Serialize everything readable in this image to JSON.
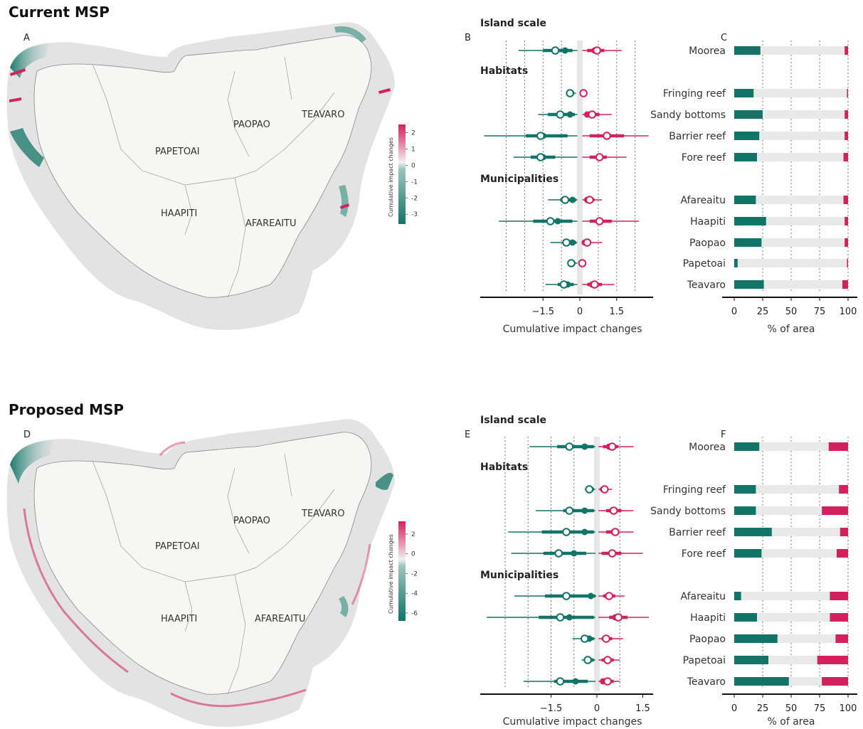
{
  "colors": {
    "negative": "#117466",
    "positive": "#d3215f",
    "bar_bg": "#e9e9e9",
    "land": "#f4f4f2",
    "reef": "#e4e4e4"
  },
  "panels": [
    {
      "section_title": "Current MSP",
      "map": {
        "letter": "A",
        "municipalities": [
          "PAPETOAI",
          "PAOPAO",
          "TEAVARO",
          "HAAPITI",
          "AFAREAITU"
        ],
        "colorbar": {
          "title": "Cumulative impact changes",
          "ticks": [
            2,
            1,
            0,
            -1,
            -2,
            -3
          ],
          "min": -3.6,
          "max": 2.5
        }
      },
      "forest_letter": "B",
      "bars_letter": "C",
      "forest_axis_title": "Cumulative impact changes",
      "bars_axis_title": "% of area",
      "groups": [
        "Island scale",
        "Habitats",
        "Municipalities"
      ]
    },
    {
      "section_title": "Proposed MSP",
      "map": {
        "letter": "D",
        "municipalities": [
          "PAPETOAI",
          "PAOPAO",
          "TEAVARO",
          "HAAPITI",
          "AFAREAITU"
        ],
        "colorbar": {
          "title": "Cumulative impact changes",
          "ticks": [
            2,
            0,
            -2,
            -4,
            -6
          ],
          "min": -6.8,
          "max": 3.3
        }
      },
      "forest_letter": "E",
      "bars_letter": "F",
      "forest_axis_title": "Cumulative impact changes",
      "bars_axis_title": "% of area",
      "groups": [
        "Island scale",
        "Habitats",
        "Municipalities"
      ]
    }
  ],
  "chart_data": [
    {
      "type": "forest",
      "panel": "B",
      "xlabel": "Cumulative impact changes",
      "x_ticks": [
        -1.5,
        0,
        1.5
      ],
      "xlim": [
        -3.8,
        3.1
      ],
      "rows": [
        {
          "label": "Moorea",
          "group": "Island scale",
          "neg": {
            "low": -2.5,
            "q1": -1.5,
            "median": -1.0,
            "mean": -0.6,
            "q3": -0.3,
            "high": -0.1
          },
          "pos": {
            "low": 0.1,
            "q1": 0.3,
            "median": 0.7,
            "mean": 0.6,
            "q3": 1.0,
            "high": 1.7
          }
        },
        {
          "label": "Fringing reef",
          "group": "Habitats",
          "neg": {
            "low": -0.5,
            "q1": -0.45,
            "median": -0.4,
            "mean": -0.35,
            "q3": -0.25,
            "high": -0.15
          },
          "pos": {
            "low": 0.1,
            "q1": 0.1,
            "median": 0.15,
            "mean": 0.15,
            "q3": 0.15,
            "high": 0.15
          }
        },
        {
          "label": "Sandy bottoms",
          "group": "Habitats",
          "neg": {
            "low": -1.7,
            "q1": -1.3,
            "median": -0.8,
            "mean": -0.4,
            "q3": -0.2,
            "high": -0.1
          },
          "pos": {
            "low": 0.1,
            "q1": 0.2,
            "median": 0.5,
            "mean": 0.3,
            "q3": 0.8,
            "high": 1.3
          }
        },
        {
          "label": "Barrier reef",
          "group": "Habitats",
          "neg": {
            "low": -3.9,
            "q1": -2.2,
            "median": -1.6,
            "mean": -1.5,
            "q3": -0.5,
            "high": -0.1
          },
          "pos": {
            "low": 0.1,
            "q1": 0.4,
            "median": 1.1,
            "mean": 1.1,
            "q3": 1.8,
            "high": 2.8
          }
        },
        {
          "label": "Fore reef",
          "group": "Habitats",
          "neg": {
            "low": -2.7,
            "q1": -2.0,
            "median": -1.6,
            "mean": -1.5,
            "q3": -1.0,
            "high": -0.1
          },
          "pos": {
            "low": 0.1,
            "q1": 0.4,
            "median": 0.8,
            "mean": 0.8,
            "q3": 1.1,
            "high": 1.9
          }
        },
        {
          "label": "Afareaitu",
          "group": "Municipalities",
          "neg": {
            "low": -1.3,
            "q1": -0.8,
            "median": -0.6,
            "mean": -0.3,
            "q3": -0.15,
            "high": -0.1
          },
          "pos": {
            "low": 0.1,
            "q1": 0.2,
            "median": 0.4,
            "mean": 0.3,
            "q3": 0.6,
            "high": 0.9
          }
        },
        {
          "label": "Haapiti",
          "group": "Municipalities",
          "neg": {
            "low": -3.3,
            "q1": -1.9,
            "median": -1.2,
            "mean": -0.9,
            "q3": -0.3,
            "high": -0.1
          },
          "pos": {
            "low": 0.1,
            "q1": 0.4,
            "median": 0.8,
            "mean": 0.8,
            "q3": 1.3,
            "high": 2.4
          }
        },
        {
          "label": "Paopao",
          "group": "Municipalities",
          "neg": {
            "low": -1.2,
            "q1": -0.7,
            "median": -0.55,
            "mean": -0.3,
            "q3": -0.15,
            "high": -0.1
          },
          "pos": {
            "low": 0.1,
            "q1": 0.15,
            "median": 0.3,
            "mean": 0.2,
            "q3": 0.4,
            "high": 0.9
          }
        },
        {
          "label": "Papetoai",
          "group": "Municipalities",
          "neg": {
            "low": -0.45,
            "q1": -0.4,
            "median": -0.35,
            "mean": -0.3,
            "q3": -0.2,
            "high": -0.1
          },
          "pos": {
            "low": 0.1,
            "q1": 0.1,
            "median": 0.1,
            "mean": 0.1,
            "q3": 0.1,
            "high": 0.15
          }
        },
        {
          "label": "Teavaro",
          "group": "Municipalities",
          "neg": {
            "low": -1.4,
            "q1": -0.9,
            "median": -0.65,
            "mean": -0.5,
            "q3": -0.25,
            "high": -0.1
          },
          "pos": {
            "low": 0.1,
            "q1": 0.3,
            "median": 0.6,
            "mean": 0.5,
            "q3": 0.9,
            "high": 1.4
          }
        }
      ]
    },
    {
      "type": "stacked_bar",
      "panel": "C",
      "xlabel": "% of area",
      "x_ticks": [
        0,
        25,
        50,
        75,
        100
      ],
      "xlim": [
        0,
        100
      ],
      "rows": [
        {
          "label": "Moorea",
          "negative": 23,
          "neutral": 74,
          "positive": 3
        },
        {
          "label": "Fringing reef",
          "negative": 17,
          "neutral": 82,
          "positive": 1
        },
        {
          "label": "Sandy bottoms",
          "negative": 25,
          "neutral": 72,
          "positive": 3
        },
        {
          "label": "Barrier reef",
          "negative": 22,
          "neutral": 75,
          "positive": 3
        },
        {
          "label": "Fore reef",
          "negative": 20,
          "neutral": 76,
          "positive": 4
        },
        {
          "label": "Afareaitu",
          "negative": 19,
          "neutral": 77,
          "positive": 4
        },
        {
          "label": "Haapiti",
          "negative": 28,
          "neutral": 69,
          "positive": 3
        },
        {
          "label": "Paopao",
          "negative": 24,
          "neutral": 73,
          "positive": 3
        },
        {
          "label": "Papetoai",
          "negative": 3,
          "neutral": 96,
          "positive": 1
        },
        {
          "label": "Teavaro",
          "negative": 26,
          "neutral": 69,
          "positive": 5
        }
      ]
    },
    {
      "type": "forest",
      "panel": "E",
      "xlabel": "Cumulative impact changes",
      "x_ticks": [
        -1.5,
        0,
        1.5
      ],
      "xlim": [
        -3.8,
        1.9
      ],
      "rows": [
        {
          "label": "Moorea",
          "group": "Island scale",
          "neg": {
            "low": -2.2,
            "q1": -1.3,
            "median": -0.9,
            "mean": -0.4,
            "q3": -0.1,
            "high": -0.05
          },
          "pos": {
            "low": 0.05,
            "q1": 0.2,
            "median": 0.5,
            "mean": 0.4,
            "q3": 0.7,
            "high": 1.2
          }
        },
        {
          "label": "Fringing reef",
          "group": "Habitats",
          "neg": {
            "low": -0.4,
            "q1": -0.35,
            "median": -0.25,
            "mean": -0.2,
            "q3": -0.1,
            "high": -0.05
          },
          "pos": {
            "low": 0.05,
            "q1": 0.1,
            "median": 0.25,
            "mean": 0.2,
            "q3": 0.35,
            "high": 0.5
          }
        },
        {
          "label": "Sandy bottoms",
          "group": "Habitats",
          "neg": {
            "low": -2.0,
            "q1": -1.1,
            "median": -0.9,
            "mean": -0.4,
            "q3": -0.1,
            "high": -0.05
          },
          "pos": {
            "low": 0.05,
            "q1": 0.3,
            "median": 0.55,
            "mean": 0.5,
            "q3": 0.8,
            "high": 1.2
          }
        },
        {
          "label": "Barrier reef",
          "group": "Habitats",
          "neg": {
            "low": -2.9,
            "q1": -1.8,
            "median": -1.0,
            "mean": -0.4,
            "q3": -0.1,
            "high": -0.05
          },
          "pos": {
            "low": 0.05,
            "q1": 0.3,
            "median": 0.6,
            "mean": 0.55,
            "q3": 0.7,
            "high": 1.2
          }
        },
        {
          "label": "Fore reef",
          "group": "Habitats",
          "neg": {
            "low": -2.8,
            "q1": -1.75,
            "median": -1.25,
            "mean": -0.75,
            "q3": -0.35,
            "high": -0.05
          },
          "pos": {
            "low": 0.05,
            "q1": 0.15,
            "median": 0.5,
            "mean": 0.5,
            "q3": 0.8,
            "high": 1.5
          }
        },
        {
          "label": "Afareaitu",
          "group": "Municipalities",
          "neg": {
            "low": -2.7,
            "q1": -1.7,
            "median": -1.0,
            "mean": -0.2,
            "q3": -0.05,
            "high": -0.02
          },
          "pos": {
            "low": 0.05,
            "q1": 0.2,
            "median": 0.4,
            "mean": 0.35,
            "q3": 0.6,
            "high": 0.9
          }
        },
        {
          "label": "Haapiti",
          "group": "Municipalities",
          "neg": {
            "low": -3.6,
            "q1": -1.9,
            "median": -1.2,
            "mean": -0.9,
            "q3": -0.1,
            "high": -0.05
          },
          "pos": {
            "low": 0.05,
            "q1": 0.4,
            "median": 0.7,
            "mean": 0.6,
            "q3": 1.0,
            "high": 1.7
          }
        },
        {
          "label": "Paopao",
          "group": "Municipalities",
          "neg": {
            "low": -0.8,
            "q1": -0.5,
            "median": -0.4,
            "mean": -0.25,
            "q3": -0.1,
            "high": -0.05
          },
          "pos": {
            "low": 0.05,
            "q1": 0.15,
            "median": 0.3,
            "mean": 0.3,
            "q3": 0.5,
            "high": 0.85
          }
        },
        {
          "label": "Papetoai",
          "group": "Municipalities",
          "neg": {
            "low": -0.5,
            "q1": -0.4,
            "median": -0.3,
            "mean": -0.25,
            "q3": -0.1,
            "high": -0.05
          },
          "pos": {
            "low": 0.05,
            "q1": 0.15,
            "median": 0.35,
            "mean": 0.35,
            "q3": 0.55,
            "high": 0.75
          }
        },
        {
          "label": "Teavaro",
          "group": "Municipalities",
          "neg": {
            "low": -2.4,
            "q1": -1.4,
            "median": -1.2,
            "mean": -0.7,
            "q3": -0.3,
            "high": -0.05
          },
          "pos": {
            "low": 0.05,
            "q1": 0.15,
            "median": 0.35,
            "mean": 0.2,
            "q3": 0.55,
            "high": 0.75
          }
        }
      ]
    },
    {
      "type": "stacked_bar",
      "panel": "F",
      "xlabel": "% of area",
      "x_ticks": [
        0,
        25,
        50,
        75,
        100
      ],
      "xlim": [
        0,
        100
      ],
      "rows": [
        {
          "label": "Moorea",
          "negative": 22,
          "neutral": 61,
          "positive": 17
        },
        {
          "label": "Fringing reef",
          "negative": 19,
          "neutral": 73,
          "positive": 8
        },
        {
          "label": "Sandy bottoms",
          "negative": 19,
          "neutral": 58,
          "positive": 23
        },
        {
          "label": "Barrier reef",
          "negative": 33,
          "neutral": 60,
          "positive": 7
        },
        {
          "label": "Fore reef",
          "negative": 24,
          "neutral": 66,
          "positive": 10
        },
        {
          "label": "Afareaitu",
          "negative": 6,
          "neutral": 78,
          "positive": 16
        },
        {
          "label": "Haapiti",
          "negative": 20,
          "neutral": 64,
          "positive": 16
        },
        {
          "label": "Paopao",
          "negative": 38,
          "neutral": 51,
          "positive": 11
        },
        {
          "label": "Papetoai",
          "negative": 30,
          "neutral": 43,
          "positive": 27
        },
        {
          "label": "Teavaro",
          "negative": 48,
          "neutral": 29,
          "positive": 23
        }
      ]
    }
  ]
}
